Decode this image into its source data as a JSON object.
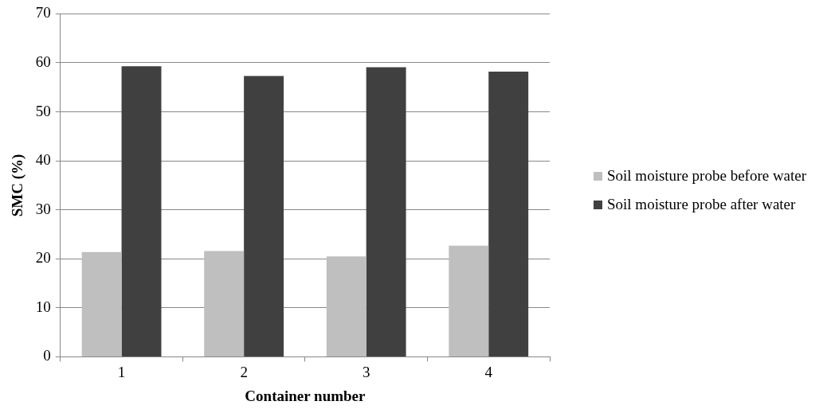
{
  "chart_data": {
    "type": "bar",
    "xlabel": "Container number",
    "ylabel": "SMC (%)",
    "categories": [
      "1",
      "2",
      "3",
      "4"
    ],
    "series": [
      {
        "name": "Soil moisture probe before water",
        "color": "#bfbfbf",
        "values": [
          21.4,
          21.6,
          20.5,
          22.7
        ]
      },
      {
        "name": "Soil moisture probe after water",
        "color": "#404040",
        "values": [
          59.3,
          57.3,
          59.1,
          58.2
        ]
      }
    ],
    "ylim": [
      0,
      70
    ],
    "yticks": [
      0,
      10,
      20,
      30,
      40,
      50,
      60,
      70
    ],
    "grid": "y",
    "legend": "right"
  }
}
